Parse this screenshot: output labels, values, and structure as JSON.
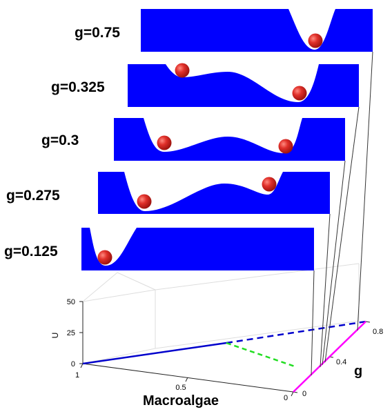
{
  "panels": [
    {
      "label": "g=0.75"
    },
    {
      "label": "g=0.325"
    },
    {
      "label": "g=0.3"
    },
    {
      "label": "g=0.275"
    },
    {
      "label": "g=0.125"
    }
  ],
  "axes": {
    "u_label": "U",
    "u_ticks": [
      "0",
      "25",
      "50"
    ],
    "macroalgae_label": "Macroalgae",
    "macroalgae_ticks": [
      "1",
      "0.5",
      "0"
    ],
    "g_label": "g",
    "g_ticks": [
      "0",
      "0.4",
      "0.8"
    ]
  },
  "colors": {
    "well_fill": "#0000ff",
    "ball": "#e0302a",
    "stable_line": "#0000cc",
    "unstable_blue": "#0000cc",
    "unstable_green": "#22dd22",
    "macroalgae_free_line": "#ff00ff",
    "connector": "#333333",
    "grid": "#dddddd"
  }
}
